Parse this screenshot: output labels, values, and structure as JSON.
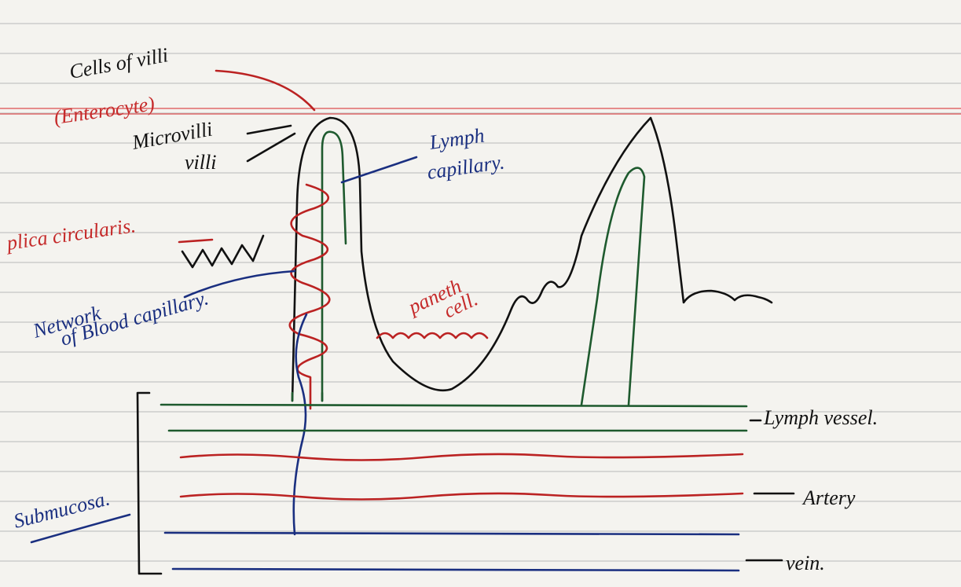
{
  "labels": {
    "cells_of_villi": "Cells of villi",
    "enterocyte": "(Enterocyte)",
    "microvilli": "Microvilli",
    "villi": "villi",
    "plica_circularis": "plica circularis.",
    "network_line1": "Network",
    "network_line2": "of Blood capillary.",
    "lymph_capillary_line1": "Lymph",
    "lymph_capillary_line2": "capillary.",
    "paneth_line1": "paneth",
    "paneth_line2": "cell.",
    "lymph_vessel": "Lymph vessel.",
    "artery": "Artery",
    "vein": "vein.",
    "submucosa": "Submucosa."
  }
}
